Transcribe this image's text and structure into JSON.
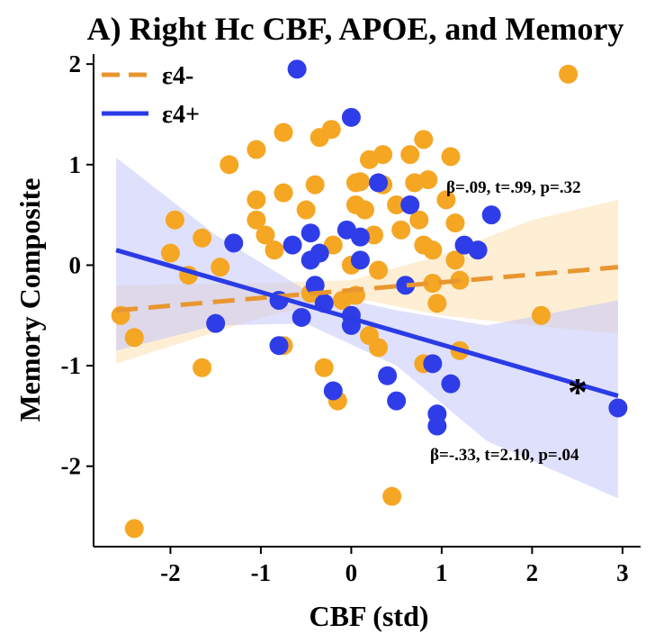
{
  "chart_data": {
    "type": "scatter",
    "title": "A) Right Hc CBF, APOE, and Memory",
    "xlabel": "CBF (std)",
    "ylabel": "Memory Composite",
    "xlim": [
      -2.85,
      3.2
    ],
    "ylim": [
      -2.8,
      2.1
    ],
    "x_ticks": [
      -2,
      -1,
      0,
      1,
      2,
      3
    ],
    "y_ticks": [
      -2,
      -1,
      0,
      1,
      2
    ],
    "grid": false,
    "legend_position": "top-left",
    "colors": {
      "e4_neg": "#F5A623",
      "e4_pos": "#2F3DE8",
      "ci_neg": "#FBE2B8",
      "ci_pos": "#C4C6FA"
    },
    "series": [
      {
        "name": "ε4-",
        "line_style": "dashed",
        "fit": {
          "x": [
            -2.6,
            2.95
          ],
          "y": [
            -0.45,
            -0.02
          ]
        },
        "ci_upper": [
          [
            -2.6,
            -0.2
          ],
          [
            -1.0,
            -0.18
          ],
          [
            0.0,
            -0.15
          ],
          [
            1.0,
            0.1
          ],
          [
            2.0,
            0.45
          ],
          [
            2.95,
            0.65
          ]
        ],
        "ci_lower": [
          [
            -2.6,
            -0.98
          ],
          [
            -1.0,
            -0.52
          ],
          [
            0.0,
            -0.32
          ],
          [
            1.0,
            -0.5
          ],
          [
            2.0,
            -0.6
          ],
          [
            2.95,
            -0.68
          ]
        ],
        "points": [
          [
            -2.4,
            -2.62
          ],
          [
            -2.55,
            -0.5
          ],
          [
            -2.4,
            -0.72
          ],
          [
            -1.95,
            0.45
          ],
          [
            -2.0,
            0.12
          ],
          [
            -1.8,
            -0.1
          ],
          [
            -1.65,
            0.27
          ],
          [
            -1.65,
            -1.02
          ],
          [
            -1.45,
            -0.02
          ],
          [
            -1.35,
            1.0
          ],
          [
            -1.05,
            1.15
          ],
          [
            -1.05,
            0.65
          ],
          [
            -1.05,
            0.45
          ],
          [
            -0.95,
            0.3
          ],
          [
            -0.85,
            0.15
          ],
          [
            -0.75,
            0.72
          ],
          [
            -0.75,
            1.32
          ],
          [
            -0.75,
            -0.8
          ],
          [
            -0.5,
            0.55
          ],
          [
            -0.4,
            0.8
          ],
          [
            -0.35,
            1.27
          ],
          [
            -0.22,
            1.35
          ],
          [
            -0.2,
            0.2
          ],
          [
            -0.1,
            -0.35
          ],
          [
            0.05,
            0.82
          ],
          [
            0.1,
            0.83
          ],
          [
            0.05,
            0.6
          ],
          [
            0.15,
            0.55
          ],
          [
            0.0,
            0.0
          ],
          [
            0.05,
            -0.3
          ],
          [
            0.2,
            1.05
          ],
          [
            0.35,
            1.1
          ],
          [
            0.35,
            0.8
          ],
          [
            0.25,
            0.3
          ],
          [
            0.3,
            -0.05
          ],
          [
            0.2,
            -0.7
          ],
          [
            0.3,
            -0.82
          ],
          [
            0.5,
            0.6
          ],
          [
            0.55,
            0.35
          ],
          [
            0.65,
            1.1
          ],
          [
            0.7,
            0.82
          ],
          [
            0.8,
            1.25
          ],
          [
            0.75,
            0.45
          ],
          [
            0.8,
            0.2
          ],
          [
            0.9,
            0.15
          ],
          [
            0.9,
            -0.18
          ],
          [
            0.95,
            -0.38
          ],
          [
            0.8,
            -0.98
          ],
          [
            1.1,
            1.08
          ],
          [
            1.15,
            0.42
          ],
          [
            1.15,
            0.05
          ],
          [
            1.2,
            -0.15
          ],
          [
            -0.3,
            -1.02
          ],
          [
            -0.45,
            -0.28
          ],
          [
            -0.15,
            -1.35
          ],
          [
            0.45,
            -2.3
          ],
          [
            1.2,
            -0.85
          ],
          [
            0.85,
            0.85
          ],
          [
            1.05,
            0.65
          ],
          [
            2.1,
            -0.5
          ],
          [
            2.4,
            1.9
          ]
        ]
      },
      {
        "name": "ε4+",
        "line_style": "solid",
        "fit": {
          "x": [
            -2.6,
            2.95
          ],
          "y": [
            0.15,
            -1.3
          ]
        },
        "ci_upper": [
          [
            -2.6,
            1.07
          ],
          [
            -1.5,
            0.3
          ],
          [
            -0.5,
            -0.25
          ],
          [
            0.5,
            -0.45
          ],
          [
            1.5,
            -0.6
          ],
          [
            2.95,
            -0.35
          ]
        ],
        "ci_lower": [
          [
            -2.6,
            -0.85
          ],
          [
            -1.5,
            -0.6
          ],
          [
            -0.5,
            -0.58
          ],
          [
            0.5,
            -1.0
          ],
          [
            1.5,
            -1.75
          ],
          [
            2.95,
            -2.32
          ]
        ],
        "points": [
          [
            -0.6,
            1.95
          ],
          [
            0.0,
            1.47
          ],
          [
            -1.3,
            0.22
          ],
          [
            -1.5,
            -0.58
          ],
          [
            -0.65,
            0.2
          ],
          [
            -0.8,
            -0.35
          ],
          [
            -0.8,
            -0.8
          ],
          [
            -0.55,
            -0.52
          ],
          [
            -0.45,
            0.32
          ],
          [
            -0.45,
            0.05
          ],
          [
            -0.4,
            -0.2
          ],
          [
            -0.35,
            0.12
          ],
          [
            -0.3,
            -0.38
          ],
          [
            -0.05,
            0.35
          ],
          [
            -0.2,
            -1.25
          ],
          [
            0.0,
            -0.5
          ],
          [
            0.0,
            -0.6
          ],
          [
            0.1,
            0.28
          ],
          [
            0.1,
            0.05
          ],
          [
            0.3,
            0.82
          ],
          [
            0.4,
            -1.1
          ],
          [
            0.5,
            -1.35
          ],
          [
            0.65,
            0.6
          ],
          [
            0.6,
            -0.2
          ],
          [
            0.9,
            -0.98
          ],
          [
            0.95,
            -1.48
          ],
          [
            0.95,
            -1.6
          ],
          [
            1.1,
            -1.18
          ],
          [
            1.25,
            0.2
          ],
          [
            1.4,
            0.15
          ],
          [
            1.55,
            0.5
          ],
          [
            2.95,
            -1.42
          ]
        ]
      }
    ],
    "annotations": [
      {
        "text": "β=.09, t=.99, p=.32",
        "series": "ε4-"
      },
      {
        "text": "β=-.33, t=2.10, p=.04",
        "series": "ε4+"
      },
      {
        "text": "*",
        "series": "ε4+"
      }
    ]
  }
}
